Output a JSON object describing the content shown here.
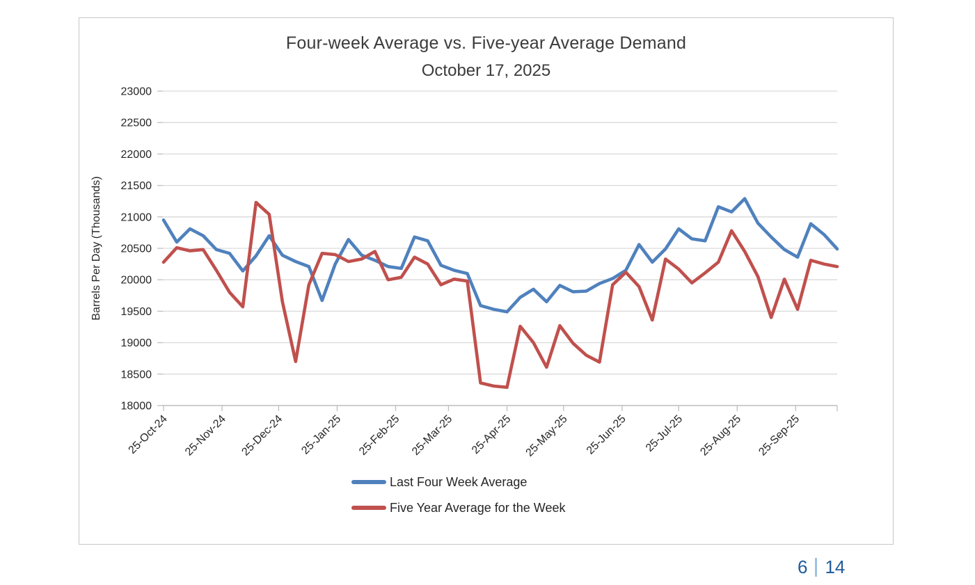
{
  "header": {
    "title_line1": "Four-week Average vs. Five-year Average Demand",
    "title_line2": "October 17, 2025"
  },
  "footer": {
    "page_current": "6",
    "page_total": "14"
  },
  "colors": {
    "series_blue": "#4F81BD",
    "series_red": "#C0504D",
    "gridline": "#D9D9D9",
    "axis_line": "#BFBFBF",
    "tick_text": "#262626",
    "title_text": "#3B3B3B",
    "page_number_blue": "#215C98",
    "page_separator_light_blue": "#9CC3E5"
  },
  "chart_data": {
    "type": "line",
    "title": "Four-week Average vs. Five-year Average Demand",
    "subtitle": "October 17, 2025",
    "xlabel": "",
    "ylabel": "Barrels Per Day (Thousands)",
    "ylim": [
      18000,
      23000
    ],
    "ytick_step": 500,
    "yticks": [
      18000,
      18500,
      19000,
      19500,
      20000,
      20500,
      21000,
      21500,
      22000,
      22500,
      23000
    ],
    "grid": true,
    "legend_position": "bottom",
    "x_unit": "weekly points starting 25-Oct-24, 7-day spacing",
    "points_per_series": 52,
    "total_days_span": 357,
    "xtick_labels": [
      "25-Oct-24",
      "25-Nov-24",
      "25-Dec-24",
      "25-Jan-25",
      "25-Feb-25",
      "25-Mar-25",
      "25-Apr-25",
      "25-May-25",
      "25-Jun-25",
      "25-Jul-25",
      "25-Aug-25",
      "25-Sep-25"
    ],
    "xtick_day_offsets": [
      0,
      31,
      61,
      92,
      123,
      151,
      182,
      212,
      243,
      273,
      304,
      335
    ],
    "series": [
      {
        "name": "Last Four Week Average",
        "color": "#4F81BD",
        "values": [
          20950,
          20600,
          20810,
          20700,
          20480,
          20420,
          20140,
          20380,
          20700,
          20390,
          20290,
          20210,
          19670,
          20250,
          20640,
          20390,
          20310,
          20210,
          20180,
          20680,
          20620,
          20230,
          20150,
          20100,
          19590,
          19530,
          19490,
          19720,
          19850,
          19650,
          19910,
          19810,
          19820,
          19940,
          20020,
          20150,
          20560,
          20280,
          20490,
          20810,
          20650,
          20620,
          21160,
          21080,
          21290,
          20900,
          20680,
          20480,
          20360,
          20890,
          20720,
          20490
        ]
      },
      {
        "name": "Five Year Average for the Week",
        "color": "#C0504D",
        "values": [
          20280,
          20510,
          20460,
          20480,
          20150,
          19800,
          19570,
          21230,
          21040,
          19650,
          18700,
          19920,
          20420,
          20400,
          20290,
          20330,
          20450,
          20000,
          20040,
          20360,
          20250,
          19920,
          20010,
          19980,
          18360,
          18310,
          18290,
          19260,
          19000,
          18610,
          19270,
          18990,
          18800,
          18690,
          19920,
          20120,
          19890,
          19360,
          20330,
          20170,
          19950,
          20110,
          20280,
          20780,
          20450,
          20050,
          19400,
          20010,
          19530,
          20310,
          20250,
          20210
        ]
      }
    ]
  }
}
